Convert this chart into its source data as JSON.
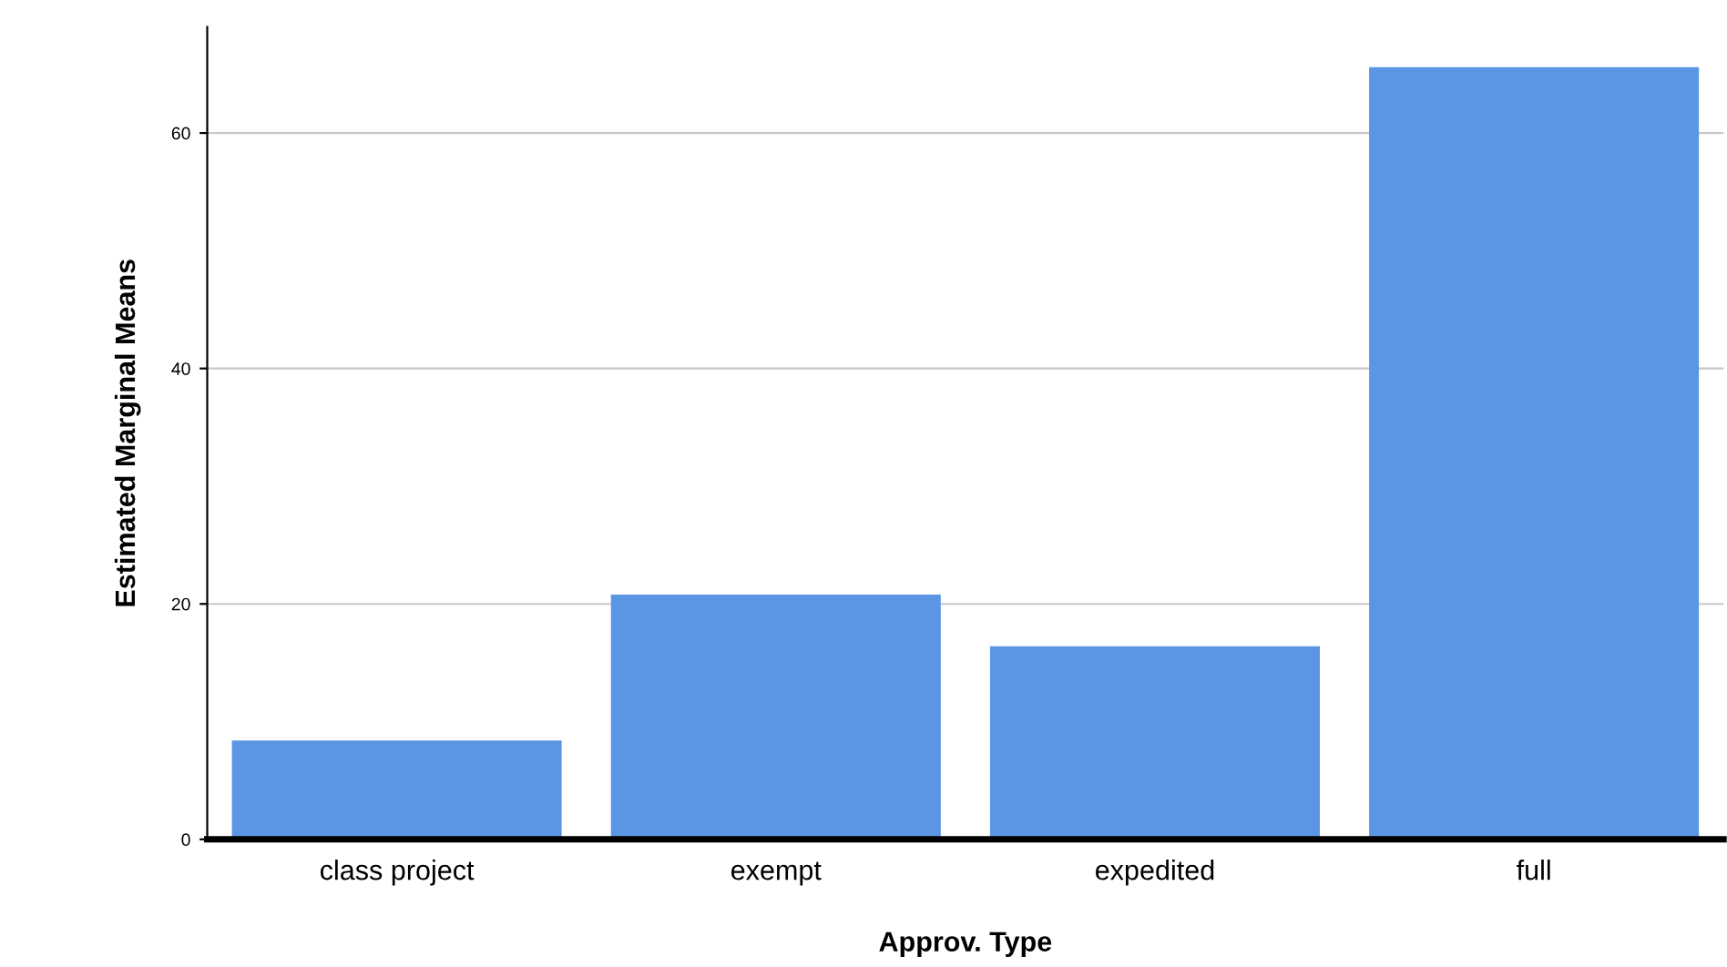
{
  "chart_data": {
    "type": "bar",
    "xlabel": "Approv. Type",
    "ylabel": "Estimated Marginal Means",
    "categories": [
      "class project",
      "exempt",
      "expedited",
      "full"
    ],
    "values": [
      8.4,
      20.8,
      16.4,
      65.6
    ],
    "color": "#5b96e4",
    "ylim": [
      0,
      69
    ],
    "yticks": [
      0,
      20,
      40,
      60
    ],
    "grid": "y",
    "legend": false
  }
}
